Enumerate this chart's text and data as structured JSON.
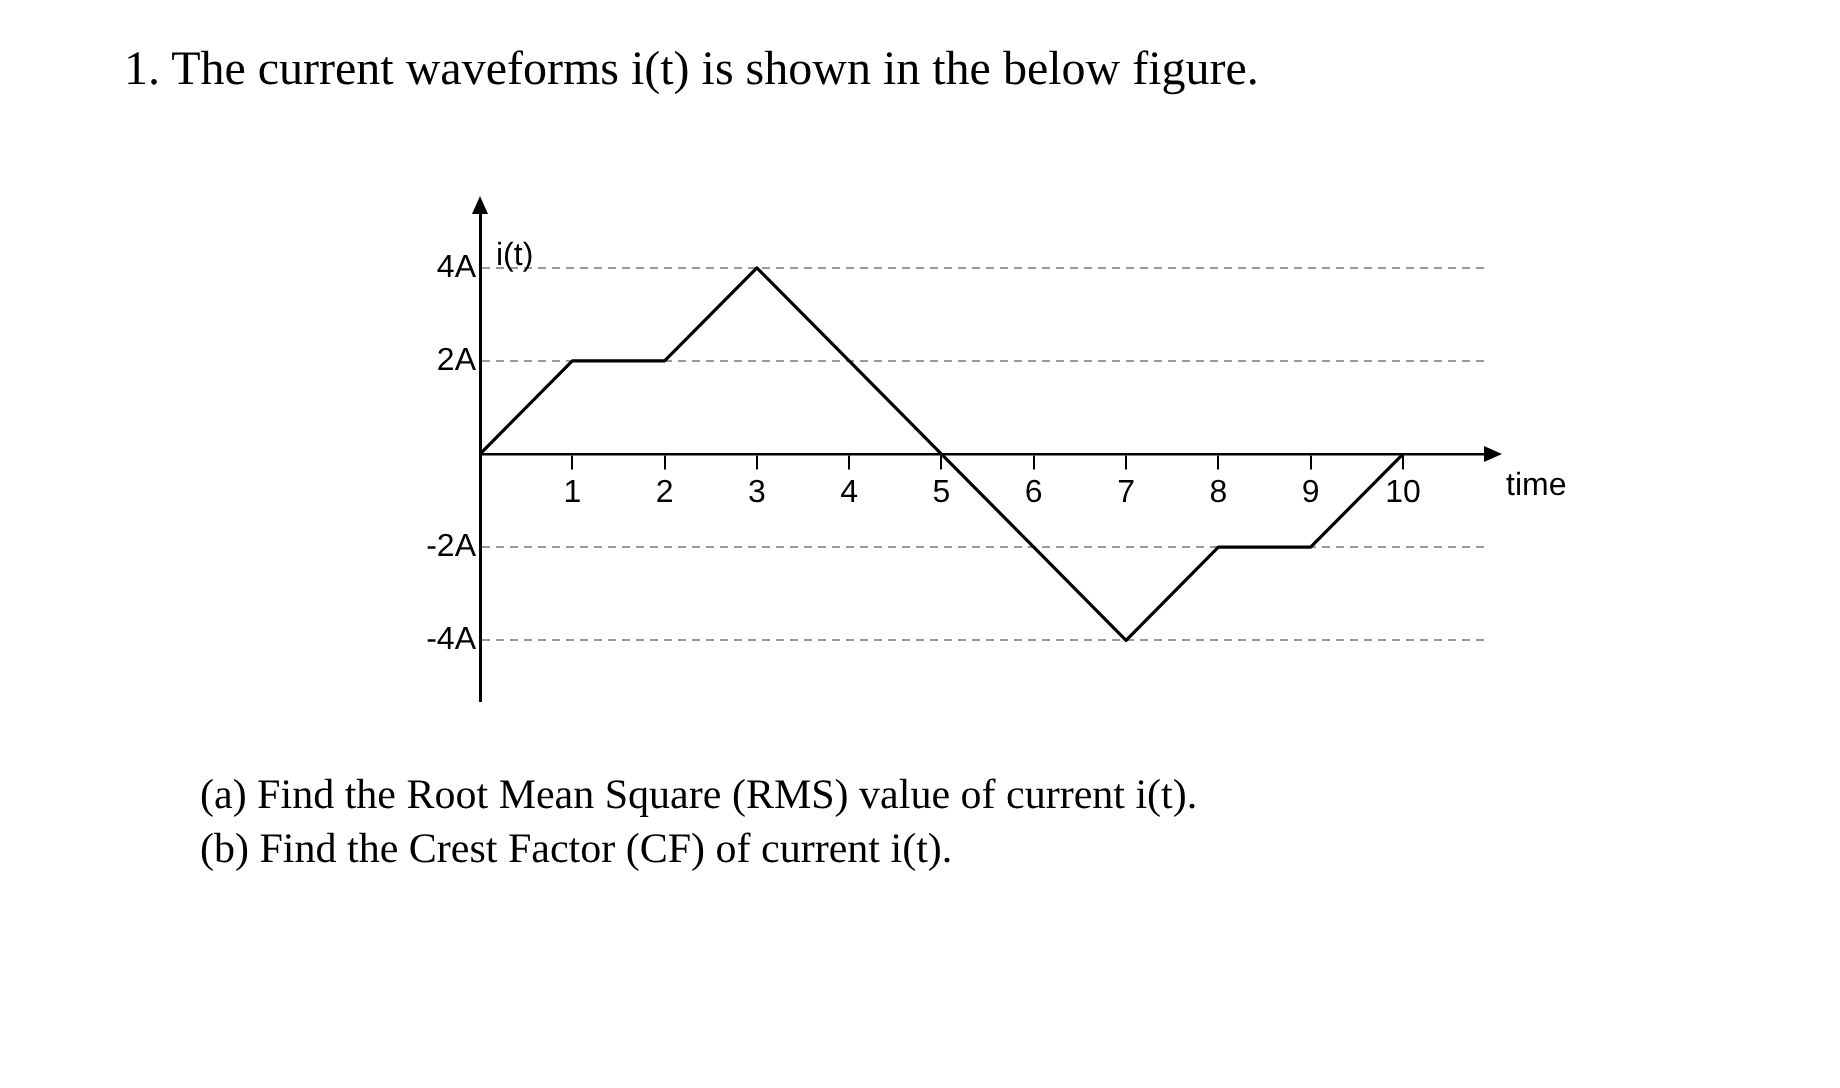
{
  "chart_data": {
    "type": "line",
    "title": "1. The current waveforms i(t) is shown in the below figure.",
    "xlabel": "time",
    "ylabel": "i(t)",
    "x": [
      0,
      1,
      2,
      3,
      4,
      5,
      6,
      7,
      8,
      9,
      10
    ],
    "series": [
      {
        "color": "#000000",
        "values": [
          0,
          2,
          2,
          4,
          2,
          0,
          -2,
          -4,
          -2,
          -2,
          0
        ]
      }
    ],
    "xlim": [
      0,
      10.9
    ],
    "ylim": [
      -5.3,
      5.2
    ],
    "xticks": [
      1,
      2,
      3,
      4,
      5,
      6,
      7,
      8,
      9,
      10
    ],
    "yticks": [
      {
        "value": -4,
        "label": "-4A"
      },
      {
        "value": -2,
        "label": "-2A"
      },
      {
        "value": 2,
        "label": "2A"
      },
      {
        "value": 4,
        "label": "4A"
      }
    ],
    "grid": "y",
    "marker": "none",
    "line_style": "solid",
    "annotations": [
      "(a) Find the Root Mean Square (RMS) value of current i(t).",
      "(b) Find the Crest Factor (CF) of current i(t)."
    ]
  }
}
